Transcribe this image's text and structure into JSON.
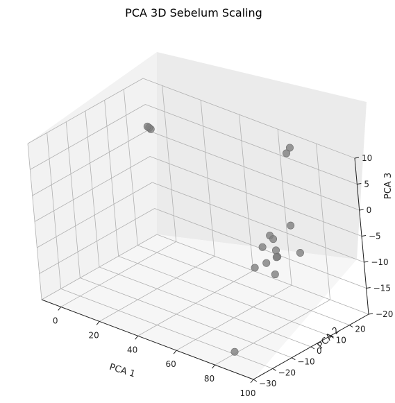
{
  "chart_data": {
    "type": "scatter",
    "title": "PCA 3D Sebelum Scaling",
    "xlabel": "PCA 1",
    "ylabel": "PCA 2",
    "zlabel": "PCA 3",
    "xlim": [
      -10,
      100
    ],
    "ylim": [
      -30,
      30
    ],
    "zlim": [
      -20,
      10
    ],
    "xticks": [
      "0",
      "20",
      "40",
      "60",
      "80",
      "100"
    ],
    "yticks": [
      "−30",
      "−20",
      "−10",
      "0",
      "10",
      "20"
    ],
    "zticks": [
      "−20",
      "−15",
      "−10",
      "−5",
      "0",
      "5",
      "10"
    ],
    "grid": true,
    "marker_color": "#808080",
    "points": [
      {
        "x": -8,
        "y": 29,
        "z": 1
      },
      {
        "x": -8.3,
        "y": 28.5,
        "z": 1.3
      },
      {
        "x": -7.6,
        "y": 29.4,
        "z": 0.7
      },
      {
        "x": 70,
        "y": 24,
        "z": 8
      },
      {
        "x": 71,
        "y": 25,
        "z": 9
      },
      {
        "x": 84,
        "y": 10,
        "z": -1
      },
      {
        "x": 90,
        "y": 8,
        "z": -5
      },
      {
        "x": 68,
        "y": 14,
        "z": -6
      },
      {
        "x": 74,
        "y": 10,
        "z": -5
      },
      {
        "x": 63,
        "y": 21,
        "z": -11
      },
      {
        "x": 57,
        "y": 20,
        "z": -11
      },
      {
        "x": 70,
        "y": 15,
        "z": -10
      },
      {
        "x": 76,
        "y": 9,
        "z": -8
      },
      {
        "x": 67,
        "y": 12,
        "z": -11
      },
      {
        "x": 66,
        "y": 7,
        "z": -11
      },
      {
        "x": 82,
        "y": 2,
        "z": -9
      },
      {
        "x": 88,
        "y": -27,
        "z": -17
      }
    ]
  }
}
